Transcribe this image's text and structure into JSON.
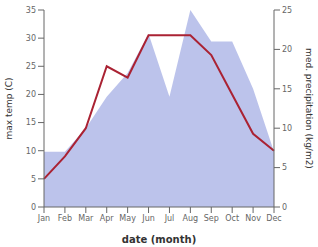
{
  "chart_data": {
    "type": "line",
    "xlabel": "date (month)",
    "ylabel": "max temp (C)",
    "y2label": "med. precipitation (kg/m2)",
    "categories": [
      "Jan",
      "Feb",
      "Mar",
      "Apr",
      "May",
      "Jun",
      "Jul",
      "Aug",
      "Sep",
      "Oct",
      "Nov",
      "Dec"
    ],
    "series": [
      {
        "type": "area",
        "color": "#b0b8e8",
        "axis": "y2",
        "values": [
          7,
          7,
          10,
          14,
          17,
          22,
          14,
          25,
          21,
          21,
          15,
          7
        ]
      },
      {
        "type": "line",
        "color": "#aa2233",
        "values": [
          5,
          9,
          14,
          25,
          23,
          30.5,
          30.5,
          30.5,
          27,
          20,
          13,
          10
        ]
      }
    ],
    "ylim": [
      0,
      35
    ],
    "yticks": [
      0,
      5,
      10,
      15,
      20,
      25,
      30,
      35
    ],
    "y2lim": [
      0,
      25
    ],
    "y2ticks": [
      0,
      5,
      10,
      15,
      20,
      25
    ],
    "grid": false
  }
}
